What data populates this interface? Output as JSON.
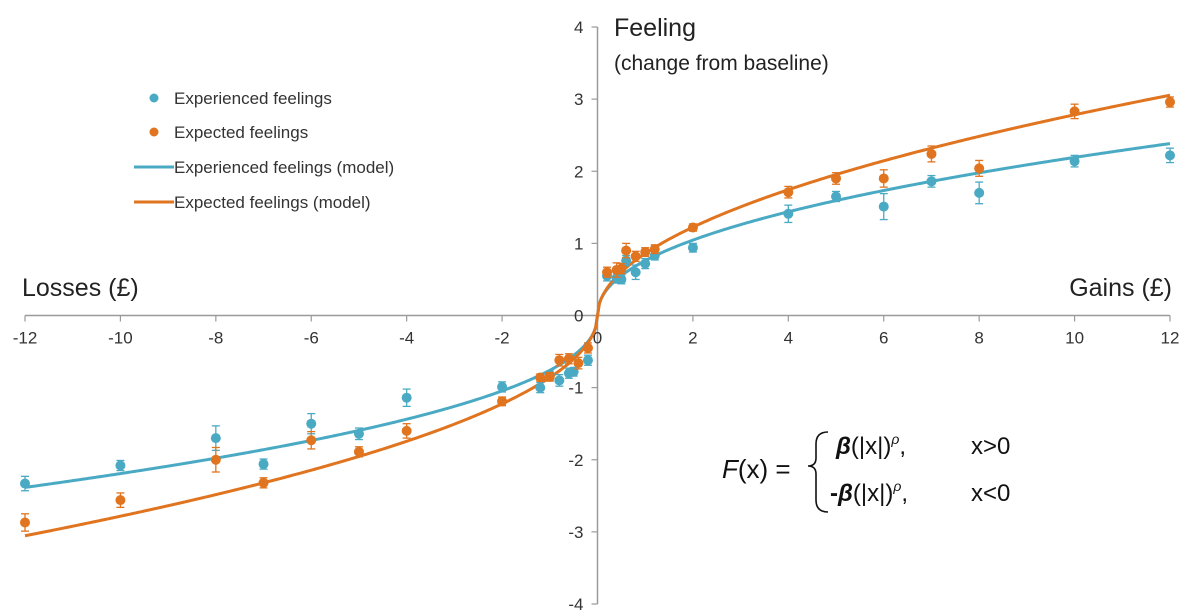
{
  "chart_data": {
    "type": "scatter",
    "axes": {
      "y_title": "Feeling",
      "y_subtitle": "(change from baseline)",
      "left_label": "Losses (£)",
      "right_label": "Gains (£)",
      "xlim": [
        -12,
        12
      ],
      "ylim": [
        -4,
        4
      ],
      "x_ticks": [
        "-12",
        "-10",
        "-8",
        "-6",
        "-4",
        "-2",
        "0",
        "2",
        "4",
        "6",
        "8",
        "10",
        "12"
      ],
      "y_ticks": [
        "4",
        "3",
        "2",
        "1",
        "0",
        "-1",
        "-2",
        "-3",
        "-4"
      ],
      "grid": false
    },
    "legend": {
      "placement": "top-left",
      "items": [
        "Experienced feelings",
        "Expected feelings",
        "Experienced feelings (model)",
        "Expected feelings (model)"
      ]
    },
    "colors": {
      "experienced": "#4aaac4",
      "expected": "#e0741f"
    },
    "series": [
      {
        "name": "Experienced feelings",
        "kind": "points",
        "color": "#4aaac4",
        "points": [
          {
            "x": -12,
            "y": -2.33,
            "err": 0.1
          },
          {
            "x": -10,
            "y": -2.08,
            "err": 0.07
          },
          {
            "x": -8,
            "y": -1.7,
            "err": 0.17
          },
          {
            "x": -7,
            "y": -2.06,
            "err": 0.07
          },
          {
            "x": -6,
            "y": -1.5,
            "err": 0.14
          },
          {
            "x": -5,
            "y": -1.64,
            "err": 0.08
          },
          {
            "x": -4,
            "y": -1.14,
            "err": 0.12
          },
          {
            "x": -2,
            "y": -0.99,
            "err": 0.07
          },
          {
            "x": -1.2,
            "y": -1.0,
            "err": 0.07
          },
          {
            "x": -1.0,
            "y": -0.83,
            "err": 0.06
          },
          {
            "x": -0.8,
            "y": -0.9,
            "err": 0.08
          },
          {
            "x": -0.6,
            "y": -0.8,
            "err": 0.07
          },
          {
            "x": -0.5,
            "y": -0.78,
            "err": 0.06
          },
          {
            "x": -0.2,
            "y": -0.62,
            "err": 0.07
          },
          {
            "x": 0.2,
            "y": 0.55,
            "err": 0.07
          },
          {
            "x": 0.4,
            "y": 0.52,
            "err": 0.07
          },
          {
            "x": 0.5,
            "y": 0.5,
            "err": 0.06
          },
          {
            "x": 0.6,
            "y": 0.76,
            "err": 0.07
          },
          {
            "x": 0.8,
            "y": 0.6,
            "err": 0.1
          },
          {
            "x": 1.0,
            "y": 0.72,
            "err": 0.07
          },
          {
            "x": 1.2,
            "y": 0.83,
            "err": 0.06
          },
          {
            "x": 2,
            "y": 0.94,
            "err": 0.06
          },
          {
            "x": 4,
            "y": 1.41,
            "err": 0.12
          },
          {
            "x": 5,
            "y": 1.65,
            "err": 0.07
          },
          {
            "x": 6,
            "y": 1.51,
            "err": 0.18
          },
          {
            "x": 7,
            "y": 1.86,
            "err": 0.08
          },
          {
            "x": 8,
            "y": 1.7,
            "err": 0.15
          },
          {
            "x": 10,
            "y": 2.14,
            "err": 0.08
          },
          {
            "x": 12,
            "y": 2.22,
            "err": 0.1
          }
        ]
      },
      {
        "name": "Expected feelings",
        "kind": "points",
        "color": "#e0741f",
        "points": [
          {
            "x": -12,
            "y": -2.87,
            "err": 0.12
          },
          {
            "x": -10,
            "y": -2.56,
            "err": 0.1
          },
          {
            "x": -8,
            "y": -2.0,
            "err": 0.17
          },
          {
            "x": -7,
            "y": -2.32,
            "err": 0.07
          },
          {
            "x": -6,
            "y": -1.73,
            "err": 0.12
          },
          {
            "x": -5,
            "y": -1.89,
            "err": 0.07
          },
          {
            "x": -4,
            "y": -1.6,
            "err": 0.1
          },
          {
            "x": -2,
            "y": -1.19,
            "err": 0.06
          },
          {
            "x": -1.2,
            "y": -0.86,
            "err": 0.05
          },
          {
            "x": -1.0,
            "y": -0.85,
            "err": 0.06
          },
          {
            "x": -0.8,
            "y": -0.62,
            "err": 0.08
          },
          {
            "x": -0.6,
            "y": -0.6,
            "err": 0.07
          },
          {
            "x": -0.4,
            "y": -0.66,
            "err": 0.08
          },
          {
            "x": -0.2,
            "y": -0.45,
            "err": 0.07
          },
          {
            "x": 0.2,
            "y": 0.6,
            "err": 0.07
          },
          {
            "x": 0.4,
            "y": 0.63,
            "err": 0.1
          },
          {
            "x": 0.5,
            "y": 0.65,
            "err": 0.07
          },
          {
            "x": 0.6,
            "y": 0.9,
            "err": 0.1
          },
          {
            "x": 0.8,
            "y": 0.82,
            "err": 0.07
          },
          {
            "x": 1.0,
            "y": 0.88,
            "err": 0.06
          },
          {
            "x": 1.2,
            "y": 0.92,
            "err": 0.06
          },
          {
            "x": 2,
            "y": 1.22,
            "err": 0.05
          },
          {
            "x": 4,
            "y": 1.71,
            "err": 0.08
          },
          {
            "x": 5,
            "y": 1.9,
            "err": 0.08
          },
          {
            "x": 6,
            "y": 1.9,
            "err": 0.12
          },
          {
            "x": 7,
            "y": 2.24,
            "err": 0.11
          },
          {
            "x": 8,
            "y": 2.04,
            "err": 0.11
          },
          {
            "x": 10,
            "y": 2.83,
            "err": 0.1
          },
          {
            "x": 12,
            "y": 2.96,
            "err": 0.07
          }
        ]
      },
      {
        "name": "Experienced feelings (model)",
        "kind": "curve",
        "color": "#4aaac4",
        "beta": 0.76,
        "rho": 0.46
      },
      {
        "name": "Expected feelings (model)",
        "kind": "curve",
        "color": "#e0741f",
        "beta": 0.86,
        "rho": 0.51
      }
    ],
    "formula": {
      "lhs_fn": "F",
      "lhs_arg": "(x) =",
      "row1_sign": "",
      "row1_beta": "β",
      "row1_abs": "(|x|)",
      "row1_exp": "ρ",
      "row1_tail": ",",
      "row1_cond": "x>0",
      "row2_sign": "-",
      "row2_beta": "β",
      "row2_abs": "(|x|)",
      "row2_exp": "ρ",
      "row2_tail": ",",
      "row2_cond": "x<0"
    }
  }
}
